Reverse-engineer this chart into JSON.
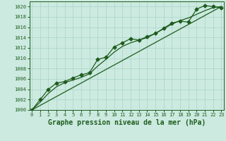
{
  "title": "Graphe pression niveau de la mer (hPa)",
  "x_hours": [
    0,
    1,
    2,
    3,
    4,
    5,
    6,
    7,
    8,
    9,
    10,
    11,
    12,
    13,
    14,
    15,
    16,
    17,
    18,
    19,
    20,
    21,
    22,
    23
  ],
  "pressure_main": [
    1000.0,
    1002.0,
    1004.0,
    1005.2,
    1005.5,
    1006.2,
    1006.8,
    1007.2,
    1009.8,
    1010.2,
    1012.2,
    1013.0,
    1013.8,
    1013.5,
    1014.2,
    1014.8,
    1015.8,
    1016.8,
    1017.2,
    1017.0,
    1019.5,
    1020.2,
    1020.0,
    1019.8
  ],
  "pressure_smooth": [
    1000.0,
    1001.5,
    1003.2,
    1004.5,
    1005.3,
    1005.8,
    1006.3,
    1007.0,
    1008.5,
    1009.8,
    1011.2,
    1012.3,
    1013.0,
    1013.5,
    1014.0,
    1014.8,
    1015.7,
    1016.6,
    1017.3,
    1017.8,
    1018.5,
    1019.2,
    1019.8,
    1020.0
  ],
  "pressure_trend": [
    1000.0,
    1000.87,
    1001.74,
    1002.61,
    1003.48,
    1004.35,
    1005.22,
    1006.09,
    1006.96,
    1007.83,
    1008.7,
    1009.57,
    1010.44,
    1011.31,
    1012.18,
    1013.05,
    1013.92,
    1014.79,
    1015.66,
    1016.53,
    1017.4,
    1018.27,
    1019.14,
    1020.0
  ],
  "ylim": [
    1000,
    1021
  ],
  "xlim_min": -0.3,
  "xlim_max": 23.3,
  "yticks": [
    1000,
    1002,
    1004,
    1006,
    1008,
    1010,
    1012,
    1014,
    1016,
    1018,
    1020
  ],
  "xticks": [
    0,
    1,
    2,
    3,
    4,
    5,
    6,
    7,
    8,
    9,
    10,
    11,
    12,
    13,
    14,
    15,
    16,
    17,
    18,
    19,
    20,
    21,
    22,
    23
  ],
  "bg_color": "#cceae0",
  "line_color": "#1e5c1e",
  "grid_color": "#aad4c8",
  "marker": "D",
  "marker_size": 2.5,
  "line_width": 0.9,
  "title_fontsize": 7.0,
  "tick_fontsize": 5.0,
  "figsize": [
    3.2,
    2.0
  ],
  "dpi": 100
}
